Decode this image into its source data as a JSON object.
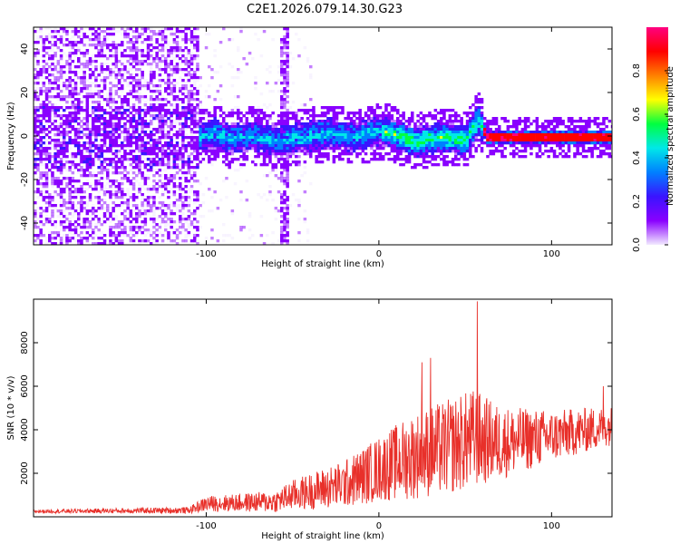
{
  "title": "C2E1.2026.079.14.30.G23",
  "chart_data": [
    {
      "type": "heatmap",
      "xlabel": "Height of straight line (km)",
      "ylabel": "Frequency (Hz)",
      "xlim": [
        -200,
        135
      ],
      "ylim": [
        -50,
        50
      ],
      "xticks": [
        -100,
        0,
        100
      ],
      "yticks": [
        -40,
        -20,
        0,
        20,
        40
      ],
      "colorbar": {
        "label": "Normalized spectral amplitude",
        "range": [
          0,
          1
        ],
        "ticks": [
          "0.0",
          "0.2",
          "0.4",
          "0.6",
          "0.8"
        ],
        "colors": [
          "#f2eaff",
          "#8a00ff",
          "#3a14ff",
          "#0080ff",
          "#00e8e8",
          "#00ff40",
          "#ffff00",
          "#ff8000",
          "#ff0000",
          "#ff0080"
        ]
      },
      "ridge_center_hz": [
        [
          -105,
          0
        ],
        [
          -95,
          2
        ],
        [
          -88,
          -1
        ],
        [
          -75,
          1
        ],
        [
          -60,
          -2
        ],
        [
          -45,
          0
        ],
        [
          -30,
          2
        ],
        [
          -15,
          0
        ],
        [
          0,
          3
        ],
        [
          10,
          1
        ],
        [
          20,
          -2
        ],
        [
          35,
          0
        ],
        [
          50,
          -1
        ],
        [
          57,
          8
        ],
        [
          62,
          0
        ],
        [
          100,
          0
        ],
        [
          135,
          0
        ]
      ],
      "events": [
        {
          "x": -56,
          "note": "vertical broadband stripe"
        }
      ]
    },
    {
      "type": "line",
      "xlabel": "Height of straight line (km)",
      "ylabel": "SNR (10 * v/v)",
      "xlim": [
        -200,
        135
      ],
      "ylim": [
        0,
        10000
      ],
      "xticks": [
        -100,
        0,
        100
      ],
      "yticks": [
        2000,
        4000,
        6000,
        8000
      ],
      "color": "#e8302a",
      "series": [
        {
          "name": "SNR",
          "envelope": [
            {
              "x": -200,
              "mean": 250,
              "amp": 80
            },
            {
              "x": -110,
              "mean": 300,
              "amp": 150
            },
            {
              "x": -100,
              "mean": 600,
              "amp": 350
            },
            {
              "x": -60,
              "mean": 700,
              "amp": 500
            },
            {
              "x": -50,
              "mean": 1000,
              "amp": 700
            },
            {
              "x": -20,
              "mean": 1500,
              "amp": 1100
            },
            {
              "x": 0,
              "mean": 2200,
              "amp": 1500
            },
            {
              "x": 20,
              "mean": 2800,
              "amp": 2000
            },
            {
              "x": 40,
              "mean": 3200,
              "amp": 2200
            },
            {
              "x": 55,
              "mean": 3600,
              "amp": 2300
            },
            {
              "x": 70,
              "mean": 3400,
              "amp": 1700
            },
            {
              "x": 100,
              "mean": 3700,
              "amp": 1200
            },
            {
              "x": 135,
              "mean": 4200,
              "amp": 900
            }
          ],
          "spikes": [
            {
              "x": 57,
              "y": 9900
            },
            {
              "x": 25,
              "y": 7100
            },
            {
              "x": 30,
              "y": 7300
            },
            {
              "x": 130,
              "y": 6000
            }
          ]
        }
      ]
    }
  ]
}
